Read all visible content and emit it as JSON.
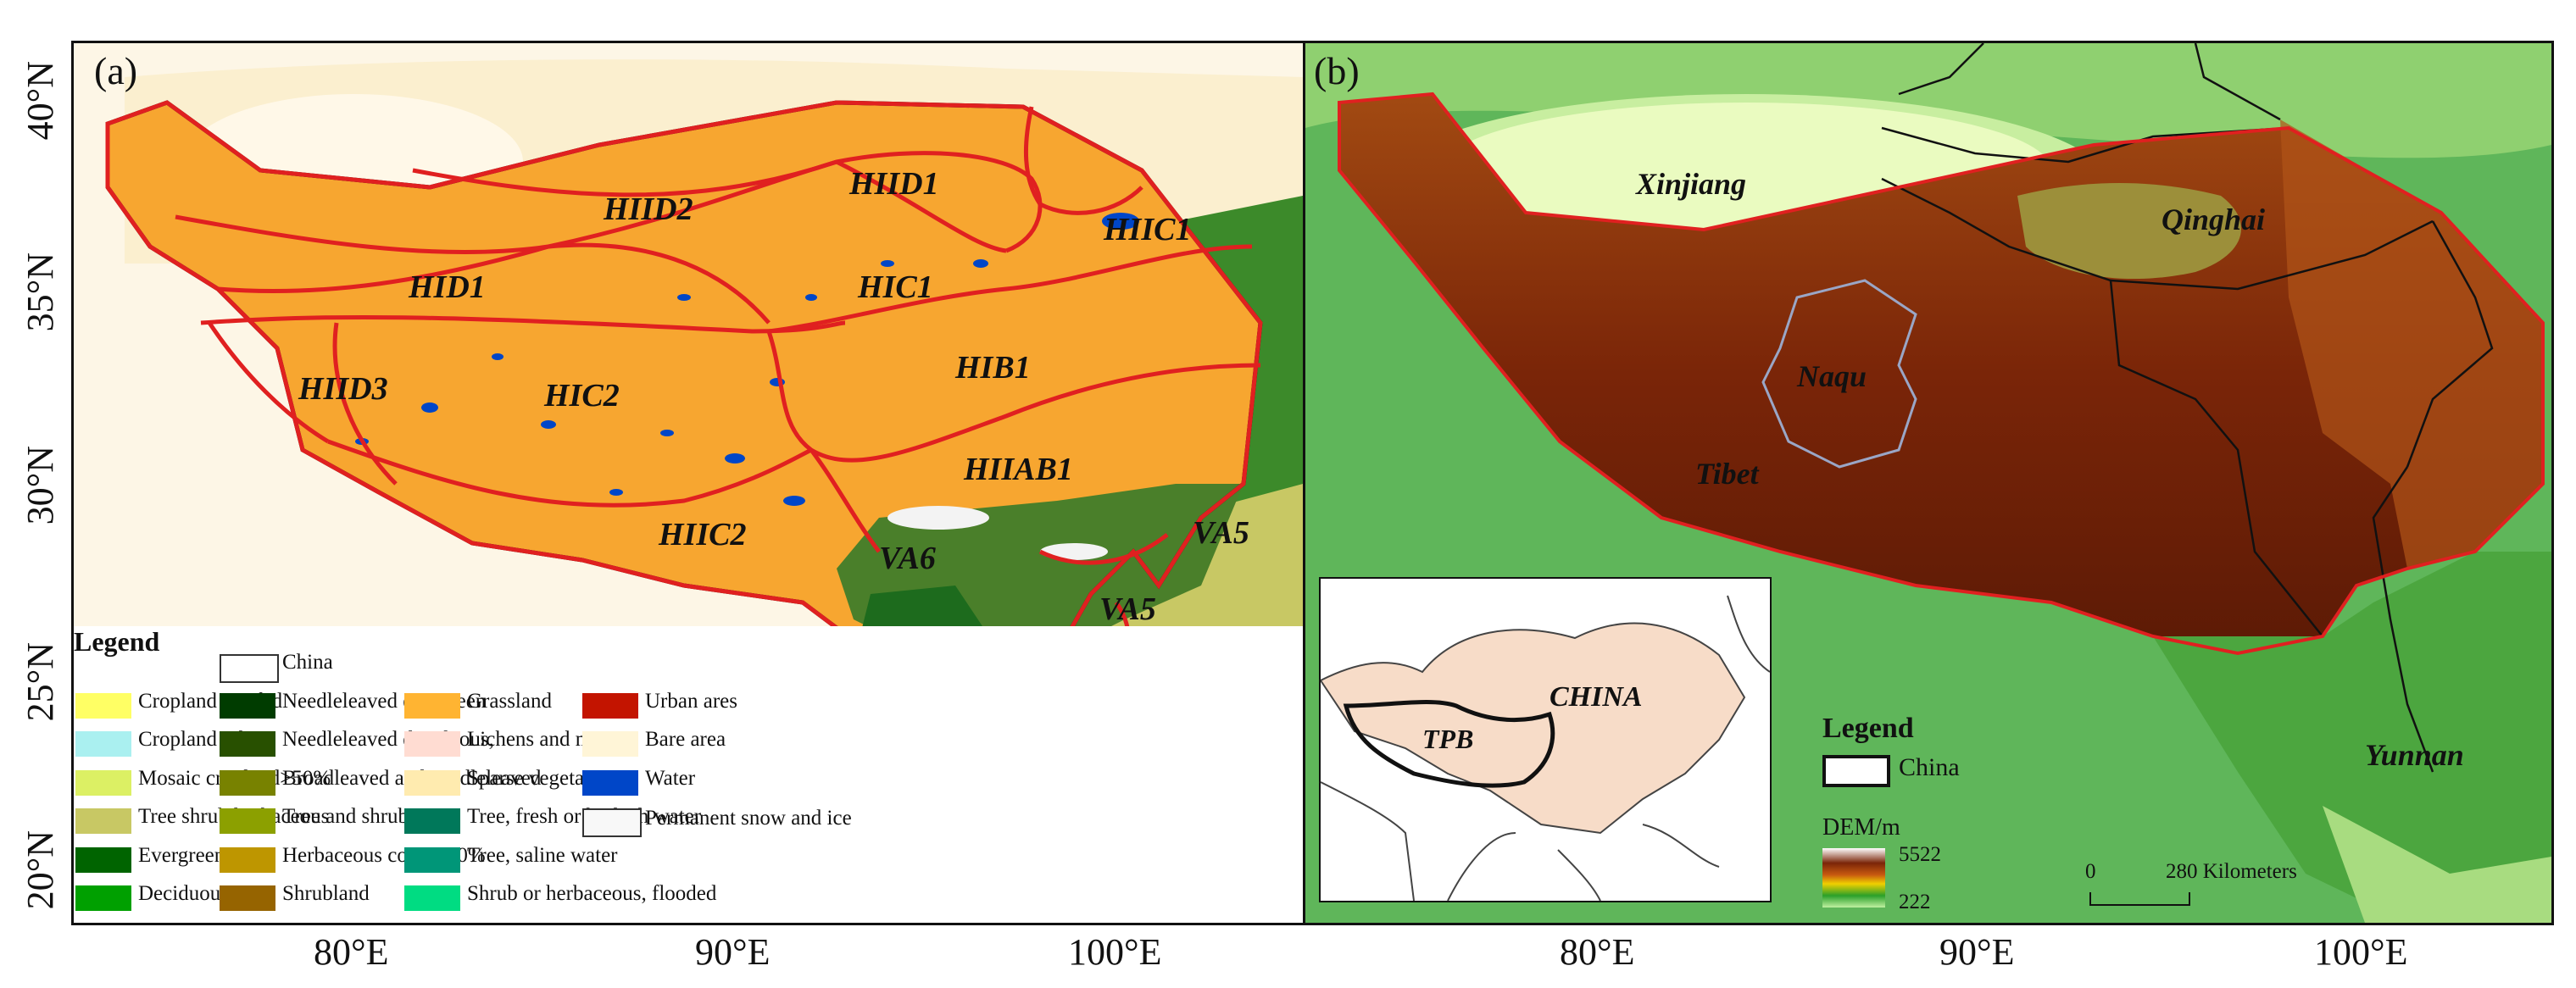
{
  "panel_a": {
    "label": "(a)",
    "regions": [
      "HIID1",
      "HIID2",
      "HIIC1",
      "HID1",
      "HIC1",
      "HIB1",
      "HIID3",
      "HIC2",
      "HIIAB1",
      "HIIC2",
      "VA6",
      "VA5",
      "VA5"
    ],
    "legend_title": "Legend",
    "legend": [
      {
        "label": "Cropland rainfed",
        "color": "#ffff64"
      },
      {
        "label": "Cropland other",
        "color": "#aaf0f0"
      },
      {
        "label": "Mosaic cropland>50%",
        "color": "#dcf064"
      },
      {
        "label": "Tree shrub herbaceous",
        "color": "#c8c864"
      },
      {
        "label": "Evergreen",
        "color": "#006400"
      },
      {
        "label": "Deciduous",
        "color": "#00a000"
      },
      {
        "label": "China",
        "color": "#ffffff"
      },
      {
        "label": "Needleleaved evergreen",
        "color": "#003c00"
      },
      {
        "label": "Needleleaved deciduous,",
        "color": "#285000"
      },
      {
        "label": "Broadleaved and needleleaved",
        "color": "#788200"
      },
      {
        "label": "Tree and shrub>50%",
        "color": "#8ca000"
      },
      {
        "label": "Herbaceous cover>50%",
        "color": "#be9600"
      },
      {
        "label": "Shrubland",
        "color": "#966400"
      },
      {
        "label": "Grassland",
        "color": "#ffb432"
      },
      {
        "label": "Lichens and mosses",
        "color": "#ffdcd2"
      },
      {
        "label": "Sparse vegetation",
        "color": "#ffebaf"
      },
      {
        "label": "Tree, fresh or brakish water",
        "color": "#00785a"
      },
      {
        "label": "Tree, saline water",
        "color": "#009678"
      },
      {
        "label": "Shrub or herbaceous, flooded",
        "color": "#00dc82"
      },
      {
        "label": "Urban ares",
        "color": "#c31400"
      },
      {
        "label": "Bare area",
        "color": "#fff5d7"
      },
      {
        "label": "Water",
        "color": "#0046c8"
      },
      {
        "label": "Permanent snow and ice",
        "color": "#f8f8f8"
      }
    ]
  },
  "panel_b": {
    "label": "(b)",
    "places": [
      "Xinjiang",
      "Qinghai",
      "Naqu",
      "Tibet",
      "Yunnan"
    ],
    "inset_labels": [
      "CHINA",
      "TPB"
    ],
    "legend_title": "Legend",
    "china_label": "China",
    "dem_title": "DEM/m",
    "dem_max": "5522",
    "dem_min": "222",
    "scale_zero": "0",
    "scale_label": "280 Kilometers"
  },
  "axes": {
    "lat_labels": [
      "40°N",
      "35°N",
      "30°N",
      "25°N",
      "20°N"
    ],
    "lon_labels": [
      "80°E",
      "90°E",
      "100°E"
    ]
  },
  "colors": {
    "region_border": "#e02020",
    "china_border": "#111111",
    "grassland": "#f7a630",
    "bare": "#fbefcf"
  }
}
